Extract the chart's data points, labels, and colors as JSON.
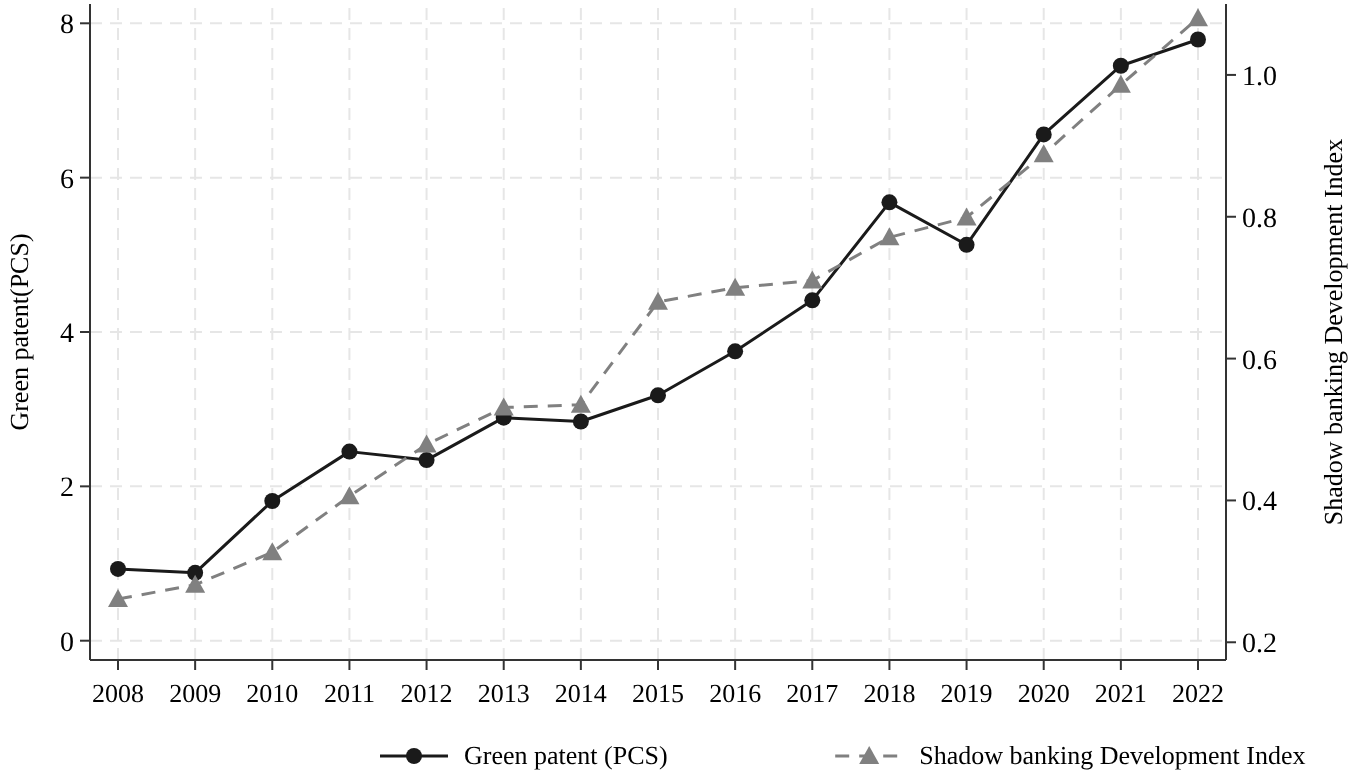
{
  "chart_data": {
    "type": "line",
    "ylabel": "Green patent(PCS)",
    "y2label": "Shadow banking Development Index",
    "categories": [
      "2008",
      "2009",
      "2010",
      "2011",
      "2012",
      "2013",
      "2014",
      "2015",
      "2016",
      "2017",
      "2018",
      "2019",
      "2020",
      "2021",
      "2022"
    ],
    "series": [
      {
        "name": "Green patent (PCS)",
        "color": "#1a1a1a",
        "marker": "circle",
        "line_style": "solid",
        "values": [
          0.93,
          0.88,
          1.81,
          2.45,
          2.34,
          2.89,
          2.84,
          3.18,
          3.75,
          4.41,
          5.68,
          5.13,
          6.56,
          7.45,
          7.79
        ]
      },
      {
        "name": "Shadow banking Development Index",
        "color": "#808080",
        "marker": "triangle",
        "line_style": "dashed",
        "axis": "y2",
        "values": [
          0.261,
          0.281,
          0.327,
          0.406,
          0.479,
          0.531,
          0.535,
          0.68,
          0.7,
          0.71,
          0.771,
          0.799,
          0.888,
          0.986,
          1.08
        ]
      }
    ],
    "ylim": [
      -0.25,
      8.25
    ],
    "yticks": [
      0,
      2,
      4,
      6,
      8
    ],
    "y2lim": [
      0.175,
      1.1
    ],
    "y2ticks": [
      0.2,
      0.4,
      0.6,
      0.8,
      {
        "value": 1,
        "label": "1.0"
      }
    ],
    "grid": true,
    "legend": "bottom"
  }
}
